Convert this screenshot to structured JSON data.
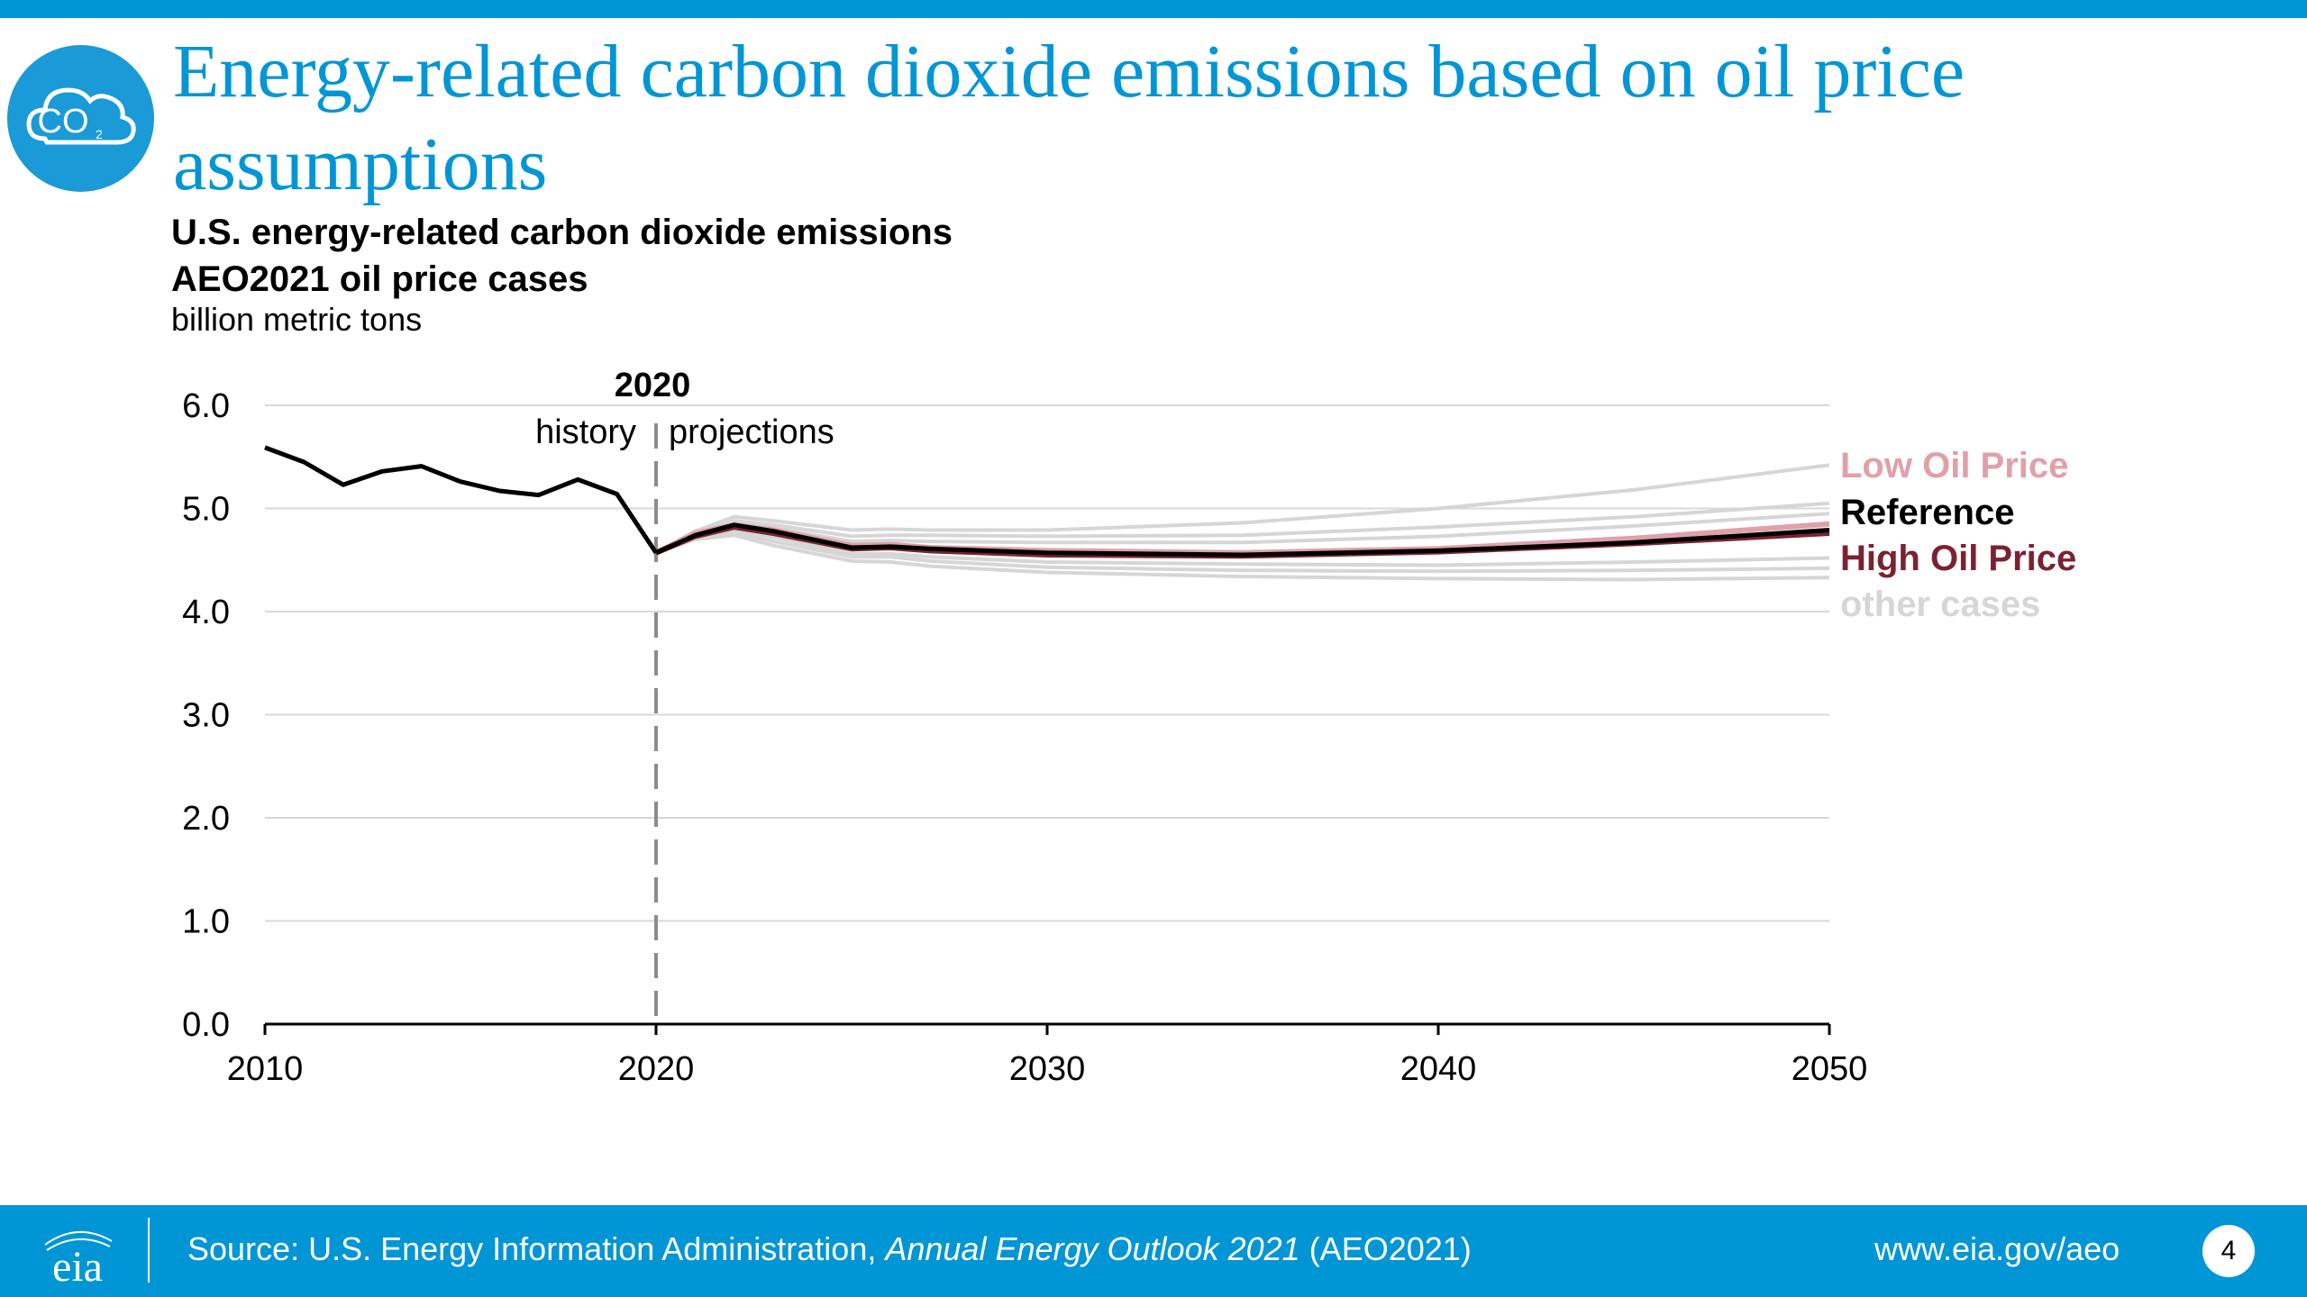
{
  "slide": {
    "title": "Energy-related carbon dioxide emissions based on oil price assumptions",
    "icon": "co2-cloud-icon",
    "badge_text": "CO",
    "badge_subscript": "2"
  },
  "footer": {
    "logo_text": "eia",
    "source_prefix": "Source: U.S. Energy Information Administration, ",
    "source_italic": "Annual Energy Outlook 2021",
    "source_suffix": " (AEO2021)",
    "website": "www.eia.gov/aeo",
    "page_number": "4"
  },
  "colors": {
    "brand_blue": "#0096d6",
    "reference": "#000000",
    "low_oil_price": "#e0a0aa",
    "high_oil_price": "#7b2232",
    "other_cases": "#d6d6d6"
  },
  "chart_data": {
    "type": "line",
    "title_lines": [
      "U.S. energy-related carbon dioxide emissions",
      "AEO2021 oil price cases"
    ],
    "ylabel": "billion metric tons",
    "xlim": [
      2010,
      2050
    ],
    "ylim": [
      0,
      6
    ],
    "y_ticks": [
      "0.0",
      "1.0",
      "2.0",
      "3.0",
      "4.0",
      "5.0",
      "6.0"
    ],
    "x_ticks": [
      "2010",
      "2020",
      "2030",
      "2040",
      "2050"
    ],
    "grid": true,
    "divider": {
      "x": 2020,
      "label": "2020",
      "left_label": "history",
      "right_label": "projections"
    },
    "history": {
      "x": [
        2010,
        2011,
        2012,
        2013,
        2014,
        2015,
        2016,
        2017,
        2018,
        2019,
        2020
      ],
      "values": [
        5.59,
        5.45,
        5.23,
        5.36,
        5.41,
        5.26,
        5.17,
        5.13,
        5.28,
        5.14,
        4.57
      ]
    },
    "projection_years": [
      2020,
      2021,
      2022,
      2023,
      2025,
      2026,
      2027,
      2030,
      2035,
      2040,
      2045,
      2050
    ],
    "series": [
      {
        "name": "Low Oil Price",
        "color": "#e0a0aa",
        "values": [
          4.57,
          4.76,
          4.84,
          4.79,
          4.64,
          4.65,
          4.62,
          4.59,
          4.57,
          4.61,
          4.71,
          4.85
        ]
      },
      {
        "name": "Reference",
        "color": "#000000",
        "values": [
          4.57,
          4.74,
          4.84,
          4.78,
          4.62,
          4.63,
          4.61,
          4.57,
          4.55,
          4.59,
          4.67,
          4.79
        ]
      },
      {
        "name": "High Oil Price",
        "color": "#7b2232",
        "values": [
          4.57,
          4.73,
          4.82,
          4.76,
          4.61,
          4.62,
          4.59,
          4.55,
          4.54,
          4.58,
          4.66,
          4.76
        ]
      }
    ],
    "other_cases_label": "other cases",
    "other_cases": [
      [
        4.57,
        4.78,
        4.92,
        4.88,
        4.79,
        4.8,
        4.79,
        4.79,
        4.86,
        5.0,
        5.18,
        5.42
      ],
      [
        4.57,
        4.76,
        4.88,
        4.84,
        4.73,
        4.74,
        4.74,
        4.73,
        4.74,
        4.82,
        4.92,
        5.05
      ],
      [
        4.57,
        4.75,
        4.86,
        4.81,
        4.68,
        4.69,
        4.68,
        4.67,
        4.67,
        4.73,
        4.83,
        4.95
      ],
      [
        4.57,
        4.73,
        4.8,
        4.72,
        4.56,
        4.56,
        4.53,
        4.48,
        4.46,
        4.45,
        4.48,
        4.52
      ],
      [
        4.57,
        4.71,
        4.77,
        4.68,
        4.53,
        4.53,
        4.49,
        4.43,
        4.4,
        4.39,
        4.4,
        4.42
      ],
      [
        4.57,
        4.7,
        4.74,
        4.64,
        4.49,
        4.48,
        4.44,
        4.38,
        4.34,
        4.32,
        4.31,
        4.33
      ]
    ]
  }
}
